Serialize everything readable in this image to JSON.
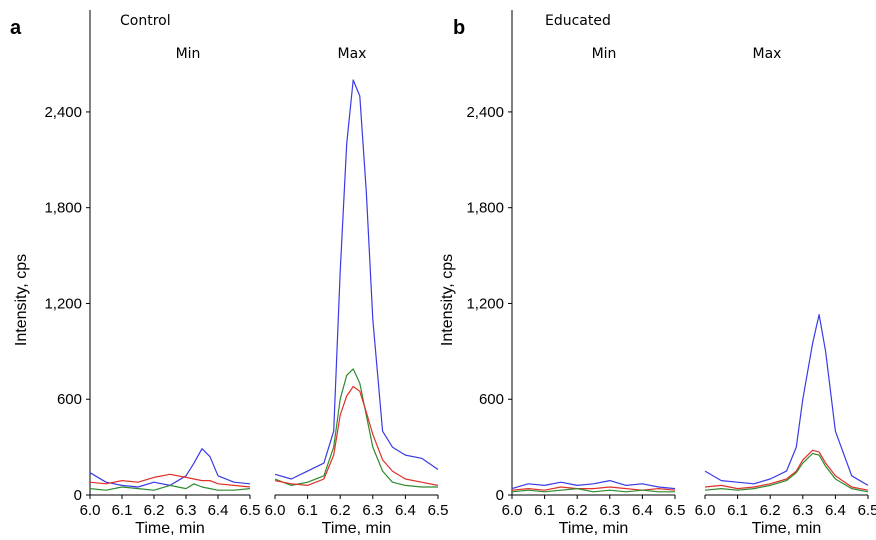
{
  "panels": [
    {
      "letter": "a",
      "group": "Control"
    },
    {
      "letter": "b",
      "group": "Educated"
    }
  ],
  "colors": {
    "blue": "#3a3ae6",
    "green": "#2e8b2e",
    "red": "#e0302a"
  },
  "chart_data": [
    {
      "type": "line",
      "panel": "a",
      "group_label": "Control",
      "subplot_title": "Min",
      "xlabel": "Time, min",
      "ylabel": "Intensity, cps",
      "xlim": [
        6.0,
        6.5
      ],
      "ylim": [
        0,
        2600
      ],
      "yticks": [
        "0",
        "600",
        "1,200",
        "1,800",
        "2,400"
      ],
      "xticks": [
        "6.0",
        "6.1",
        "6.2",
        "6.3",
        "6.4",
        "6.5"
      ],
      "x": [
        6.0,
        6.05,
        6.1,
        6.15,
        6.2,
        6.25,
        6.3,
        6.325,
        6.35,
        6.375,
        6.4,
        6.45,
        6.5
      ],
      "series": [
        {
          "color": "blue",
          "values": [
            140,
            80,
            60,
            50,
            80,
            60,
            120,
            200,
            290,
            240,
            120,
            80,
            70
          ]
        },
        {
          "color": "red",
          "values": [
            80,
            70,
            90,
            80,
            110,
            130,
            110,
            100,
            90,
            90,
            70,
            60,
            50
          ]
        },
        {
          "color": "green",
          "values": [
            40,
            30,
            50,
            40,
            30,
            60,
            40,
            70,
            50,
            40,
            30,
            30,
            40
          ]
        }
      ]
    },
    {
      "type": "line",
      "panel": "a",
      "group_label": "Control",
      "subplot_title": "Max",
      "xlabel": "Time, min",
      "ylabel": "",
      "xlim": [
        6.0,
        6.5
      ],
      "ylim": [
        0,
        2600
      ],
      "xticks": [
        "6.0",
        "6.1",
        "6.2",
        "6.3",
        "6.4",
        "6.5"
      ],
      "x": [
        6.0,
        6.05,
        6.1,
        6.15,
        6.18,
        6.2,
        6.22,
        6.24,
        6.26,
        6.28,
        6.3,
        6.33,
        6.36,
        6.4,
        6.45,
        6.5
      ],
      "series": [
        {
          "color": "blue",
          "values": [
            130,
            100,
            150,
            200,
            400,
            1400,
            2200,
            2600,
            2500,
            1900,
            1100,
            400,
            300,
            250,
            230,
            160
          ]
        },
        {
          "color": "green",
          "values": [
            100,
            60,
            80,
            120,
            300,
            600,
            750,
            790,
            700,
            500,
            300,
            150,
            80,
            60,
            50,
            50
          ]
        },
        {
          "color": "red",
          "values": [
            90,
            70,
            60,
            100,
            250,
            500,
            620,
            680,
            650,
            520,
            380,
            220,
            150,
            100,
            80,
            60
          ]
        }
      ]
    },
    {
      "type": "line",
      "panel": "b",
      "group_label": "Educated",
      "subplot_title": "Min",
      "xlabel": "Time, min",
      "ylabel": "Intensity, cps",
      "xlim": [
        6.0,
        6.5
      ],
      "ylim": [
        0,
        2600
      ],
      "yticks": [
        "0",
        "600",
        "1,200",
        "1,800",
        "2,400"
      ],
      "xticks": [
        "6.0",
        "6.1",
        "6.2",
        "6.3",
        "6.4",
        "6.5"
      ],
      "x": [
        6.0,
        6.05,
        6.1,
        6.15,
        6.2,
        6.25,
        6.3,
        6.35,
        6.4,
        6.45,
        6.5
      ],
      "series": [
        {
          "color": "blue",
          "values": [
            40,
            70,
            60,
            80,
            60,
            70,
            90,
            60,
            70,
            50,
            40
          ]
        },
        {
          "color": "red",
          "values": [
            30,
            40,
            30,
            50,
            40,
            40,
            50,
            40,
            30,
            40,
            30
          ]
        },
        {
          "color": "green",
          "values": [
            20,
            30,
            20,
            30,
            40,
            20,
            30,
            20,
            30,
            20,
            20
          ]
        }
      ]
    },
    {
      "type": "line",
      "panel": "b",
      "group_label": "Educated",
      "subplot_title": "Max",
      "xlabel": "Time, min",
      "ylabel": "",
      "xlim": [
        6.0,
        6.5
      ],
      "ylim": [
        0,
        2600
      ],
      "xticks": [
        "6.0",
        "6.1",
        "6.2",
        "6.3",
        "6.4",
        "6.5"
      ],
      "x": [
        6.0,
        6.05,
        6.1,
        6.15,
        6.2,
        6.25,
        6.28,
        6.3,
        6.33,
        6.35,
        6.37,
        6.4,
        6.45,
        6.5
      ],
      "series": [
        {
          "color": "blue",
          "values": [
            150,
            90,
            80,
            70,
            100,
            150,
            300,
            600,
            950,
            1130,
            900,
            400,
            120,
            60
          ]
        },
        {
          "color": "red",
          "values": [
            50,
            60,
            40,
            50,
            70,
            100,
            150,
            220,
            280,
            270,
            200,
            120,
            50,
            30
          ]
        },
        {
          "color": "green",
          "values": [
            30,
            40,
            30,
            40,
            60,
            90,
            140,
            200,
            260,
            250,
            180,
            100,
            40,
            20
          ]
        }
      ]
    }
  ]
}
